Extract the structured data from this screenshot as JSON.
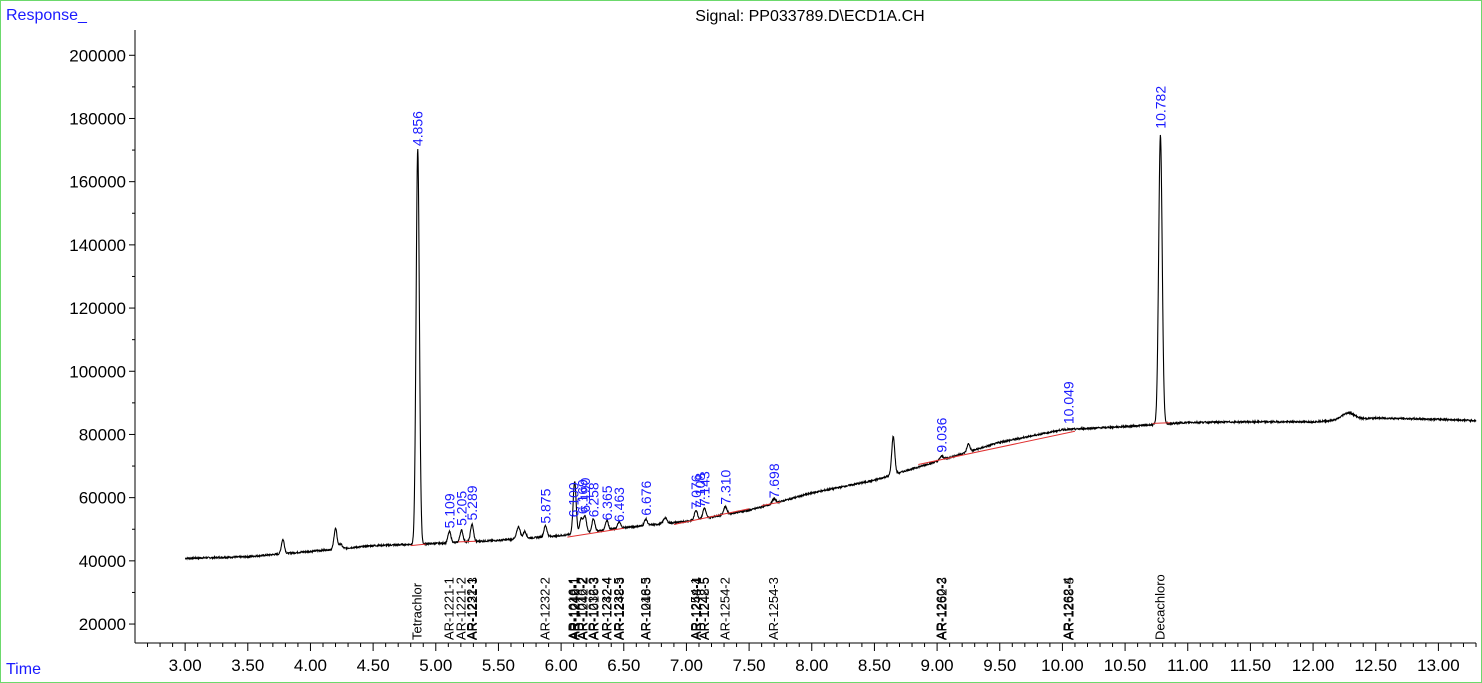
{
  "window": {
    "response_label": "Response_",
    "time_label": "Time"
  },
  "chart_data": {
    "type": "line",
    "title": "Signal: PP033789.D\\ECD1A.CH",
    "xlabel": "Time",
    "ylabel": "Response_",
    "xlim": [
      2.6,
      13.3
    ],
    "ylim": [
      14000,
      208000
    ],
    "x_ticks": [
      "3.00",
      "3.50",
      "4.00",
      "4.50",
      "5.00",
      "5.50",
      "6.00",
      "6.50",
      "7.00",
      "7.50",
      "8.00",
      "8.50",
      "9.00",
      "9.50",
      "10.00",
      "10.50",
      "11.00",
      "11.50",
      "12.00",
      "12.50",
      "13.00"
    ],
    "y_ticks": [
      "20000",
      "40000",
      "60000",
      "80000",
      "100000",
      "120000",
      "140000",
      "160000",
      "180000",
      "200000"
    ],
    "line_color": "#000000",
    "baseline_color": "#e03030",
    "label_color": "#1a1aff",
    "peaks": [
      {
        "rt": 3.78,
        "height": 4500,
        "width": 0.012
      },
      {
        "rt": 4.2,
        "height": 6500,
        "width": 0.012
      },
      {
        "rt": 4.24,
        "height": 1500,
        "width": 0.012
      },
      {
        "rt": 4.856,
        "height": 125000,
        "width": 0.013
      },
      {
        "rt": 5.109,
        "height": 3500,
        "width": 0.012
      },
      {
        "rt": 5.205,
        "height": 3800,
        "width": 0.012
      },
      {
        "rt": 5.289,
        "height": 5500,
        "width": 0.012
      },
      {
        "rt": 5.66,
        "height": 3800,
        "width": 0.014
      },
      {
        "rt": 5.71,
        "height": 2200,
        "width": 0.012
      },
      {
        "rt": 5.875,
        "height": 3500,
        "width": 0.012
      },
      {
        "rt": 6.108,
        "height": 16500,
        "width": 0.012
      },
      {
        "rt": 6.16,
        "height": 4500,
        "width": 0.012
      },
      {
        "rt": 6.19,
        "height": 5200,
        "width": 0.012
      },
      {
        "rt": 6.258,
        "height": 4000,
        "width": 0.012
      },
      {
        "rt": 6.365,
        "height": 3000,
        "width": 0.012
      },
      {
        "rt": 6.463,
        "height": 2000,
        "width": 0.012
      },
      {
        "rt": 6.676,
        "height": 2000,
        "width": 0.012
      },
      {
        "rt": 6.83,
        "height": 1800,
        "width": 0.014
      },
      {
        "rt": 7.076,
        "height": 3000,
        "width": 0.012
      },
      {
        "rt": 7.143,
        "height": 3200,
        "width": 0.012
      },
      {
        "rt": 7.31,
        "height": 2500,
        "width": 0.013
      },
      {
        "rt": 7.698,
        "height": 1500,
        "width": 0.013
      },
      {
        "rt": 8.65,
        "height": 12000,
        "width": 0.012
      },
      {
        "rt": 9.036,
        "height": 1200,
        "width": 0.014
      },
      {
        "rt": 9.25,
        "height": 2500,
        "width": 0.012
      },
      {
        "rt": 10.782,
        "height": 91500,
        "width": 0.014
      },
      {
        "rt": 12.28,
        "height": 2200,
        "width": 0.05
      }
    ],
    "baseline_points": [
      [
        2.6,
        40800
      ],
      [
        3.0,
        40800
      ],
      [
        3.5,
        41300
      ],
      [
        4.0,
        43000
      ],
      [
        4.5,
        44800
      ],
      [
        5.0,
        45500
      ],
      [
        5.5,
        46500
      ],
      [
        6.0,
        48000
      ],
      [
        6.5,
        50500
      ],
      [
        7.0,
        52500
      ],
      [
        7.5,
        56000
      ],
      [
        8.0,
        61500
      ],
      [
        8.5,
        65500
      ],
      [
        9.0,
        71500
      ],
      [
        9.5,
        77500
      ],
      [
        10.0,
        81500
      ],
      [
        10.5,
        82500
      ],
      [
        11.0,
        83800
      ],
      [
        11.5,
        84000
      ],
      [
        12.0,
        84000
      ],
      [
        12.5,
        85200
      ],
      [
        13.0,
        84800
      ],
      [
        13.3,
        84400
      ]
    ],
    "integration_baselines": [
      {
        "x": [
          4.8,
          4.92
        ],
        "y": [
          44800,
          45300
        ]
      },
      {
        "x": [
          5.18,
          5.32
        ],
        "y": [
          46000,
          46200
        ]
      },
      {
        "x": [
          6.05,
          6.5
        ],
        "y": [
          47500,
          50300
        ]
      },
      {
        "x": [
          6.9,
          7.5
        ],
        "y": [
          51500,
          56500
        ]
      },
      {
        "x": [
          7.6,
          7.75
        ],
        "y": [
          57500,
          58600
        ]
      },
      {
        "x": [
          8.85,
          10.1
        ],
        "y": [
          70500,
          81000
        ]
      },
      {
        "x": [
          10.72,
          10.86
        ],
        "y": [
          83500,
          83700
        ]
      }
    ],
    "peak_labels": [
      {
        "rt": 4.856,
        "label": "4.856",
        "y": 170000
      },
      {
        "rt": 5.109,
        "label": "5.109",
        "y": 49000
      },
      {
        "rt": 5.205,
        "label": "5.205",
        "y": 49800
      },
      {
        "rt": 5.289,
        "label": "5.289",
        "y": 51500
      },
      {
        "rt": 5.875,
        "label": "5.875",
        "y": 50500
      },
      {
        "rt": 6.1,
        "label": "6.100",
        "y": 52500
      },
      {
        "rt": 6.169,
        "label": "6.169",
        "y": 53500
      },
      {
        "rt": 6.19,
        "label": "6.190",
        "y": 54000
      },
      {
        "rt": 6.258,
        "label": "6.258",
        "y": 52500
      },
      {
        "rt": 6.365,
        "label": "6.365",
        "y": 51500
      },
      {
        "rt": 6.463,
        "label": "6.463",
        "y": 51000
      },
      {
        "rt": 6.676,
        "label": "6.676",
        "y": 53000
      },
      {
        "rt": 7.076,
        "label": "7.076",
        "y": 55000
      },
      {
        "rt": 7.108,
        "label": "7.108",
        "y": 55500
      },
      {
        "rt": 7.143,
        "label": "7.143",
        "y": 56000
      },
      {
        "rt": 7.31,
        "label": "7.310",
        "y": 56500
      },
      {
        "rt": 7.698,
        "label": "7.698",
        "y": 58500
      },
      {
        "rt": 9.036,
        "label": "9.036",
        "y": 73000
      },
      {
        "rt": 10.049,
        "label": "10.049",
        "y": 82000
      },
      {
        "rt": 10.782,
        "label": "10.782",
        "y": 175500
      }
    ],
    "compound_labels": [
      {
        "rt": 4.856,
        "label": "Tetrachlor"
      },
      {
        "rt": 5.109,
        "label": "AR-1221-1"
      },
      {
        "rt": 5.205,
        "label": "AR-1221-2"
      },
      {
        "rt": 5.289,
        "label": "AR-1232-1"
      },
      {
        "rt": 5.295,
        "label": "AR-1221-3"
      },
      {
        "rt": 5.875,
        "label": "AR-1232-2"
      },
      {
        "rt": 6.1,
        "label": "AR-1016-1"
      },
      {
        "rt": 6.108,
        "label": "AR-1242-1"
      },
      {
        "rt": 6.115,
        "label": "AR-1248-1"
      },
      {
        "rt": 6.169,
        "label": "AR-1016-2"
      },
      {
        "rt": 6.18,
        "label": "AR-1242-2"
      },
      {
        "rt": 6.258,
        "label": "AR-1232-3"
      },
      {
        "rt": 6.265,
        "label": "AR-1016-3"
      },
      {
        "rt": 6.365,
        "label": "AR-1232-4"
      },
      {
        "rt": 6.372,
        "label": "AR-1242-4"
      },
      {
        "rt": 6.463,
        "label": "AR-1232-5"
      },
      {
        "rt": 6.47,
        "label": "AR-1248-3"
      },
      {
        "rt": 6.676,
        "label": "AR-1016-5"
      },
      {
        "rt": 6.683,
        "label": "AR-1248-3"
      },
      {
        "rt": 7.076,
        "label": "AR-1254-1"
      },
      {
        "rt": 7.083,
        "label": "AR-1248-4"
      },
      {
        "rt": 7.143,
        "label": "AR-1242-5"
      },
      {
        "rt": 7.15,
        "label": "AR-1248-5"
      },
      {
        "rt": 7.31,
        "label": "AR-1254-2"
      },
      {
        "rt": 7.698,
        "label": "AR-1254-3"
      },
      {
        "rt": 9.036,
        "label": "AR-1260-2"
      },
      {
        "rt": 9.043,
        "label": "AR-1262-3"
      },
      {
        "rt": 10.049,
        "label": "AR-1262-4"
      },
      {
        "rt": 10.056,
        "label": "AR-1268-5"
      },
      {
        "rt": 10.782,
        "label": "Decachloro"
      }
    ]
  }
}
